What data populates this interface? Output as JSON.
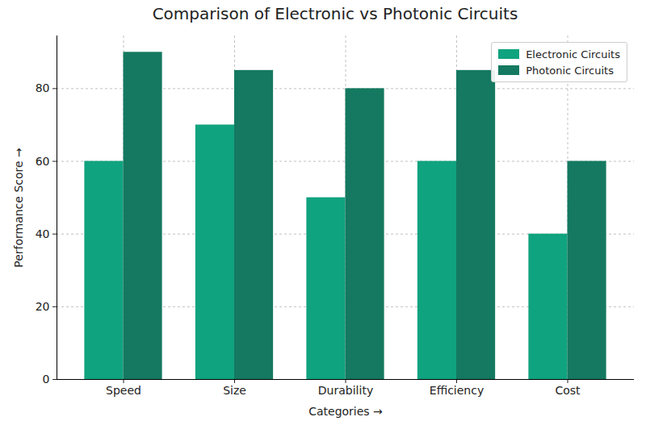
{
  "chart_data": {
    "type": "bar",
    "title": "Comparison of Electronic vs Photonic Circuits",
    "x_label": "Categories",
    "y_label": "Performance Score",
    "categories": [
      "Speed",
      "Size",
      "Durability",
      "Efficiency",
      "Cost"
    ],
    "series": [
      {
        "name": "Electronic Circuits",
        "color": "#10a37f",
        "values": [
          60,
          70,
          50,
          60,
          40
        ]
      },
      {
        "name": "Photonic Circuits",
        "color": "#147960",
        "values": [
          90,
          85,
          80,
          85,
          60
        ]
      }
    ],
    "ylim": [
      0,
      94.5
    ],
    "yticks": [
      0,
      20,
      40,
      60,
      80
    ],
    "grid": true,
    "legend": "upper right"
  }
}
